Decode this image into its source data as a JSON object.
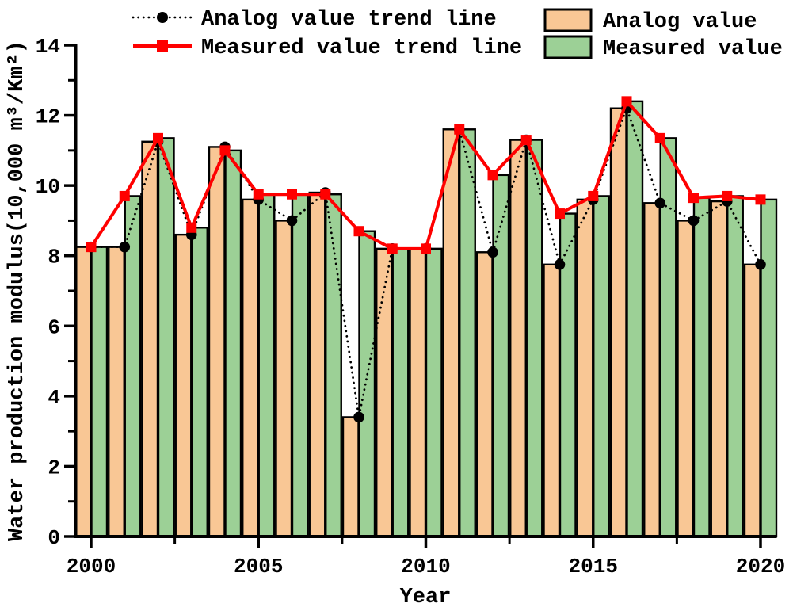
{
  "chart_data": {
    "type": "bar",
    "title": "",
    "xlabel": "Year",
    "ylabel": "Water production modulus(10,000 m³/Km²)",
    "ylim": [
      0,
      14
    ],
    "y_major_ticks": [
      0,
      2,
      4,
      6,
      8,
      10,
      12,
      14
    ],
    "y_minor_ticks": [
      1,
      3,
      5,
      7,
      9,
      11,
      13
    ],
    "x_major_ticks": [
      2000,
      2005,
      2010,
      2015,
      2020
    ],
    "x_minor_ticks": [
      2002.5,
      2007.5,
      2012.5,
      2017.5
    ],
    "grid": false,
    "legend_position": "top",
    "categories": [
      2000,
      2001,
      2002,
      2003,
      2004,
      2005,
      2006,
      2007,
      2008,
      2009,
      2010,
      2011,
      2012,
      2013,
      2014,
      2015,
      2016,
      2017,
      2018,
      2019,
      2020
    ],
    "series": [
      {
        "name": "Analog value",
        "type": "bar",
        "color": "#F9C795",
        "edge_color": "#000000",
        "values": [
          8.25,
          8.25,
          11.25,
          8.6,
          11.1,
          9.6,
          9.0,
          9.8,
          3.4,
          8.2,
          8.2,
          11.6,
          8.1,
          11.3,
          7.75,
          9.6,
          12.2,
          9.5,
          9.0,
          9.55,
          7.75
        ]
      },
      {
        "name": "Measured value",
        "type": "bar",
        "color": "#9CD096",
        "edge_color": "#000000",
        "values": [
          8.25,
          9.7,
          11.35,
          8.8,
          11.0,
          9.75,
          9.75,
          9.75,
          8.7,
          8.2,
          8.2,
          11.6,
          10.3,
          11.3,
          9.2,
          9.7,
          12.4,
          11.35,
          9.65,
          9.7,
          9.6
        ]
      },
      {
        "name": "Analog value trend line",
        "type": "line",
        "linestyle": "dotted",
        "marker": "circle",
        "color": "#000000",
        "values": [
          8.25,
          8.25,
          11.25,
          8.6,
          11.1,
          9.6,
          9.0,
          9.8,
          3.4,
          8.2,
          8.2,
          11.6,
          8.1,
          11.3,
          7.75,
          9.6,
          12.2,
          9.5,
          9.0,
          9.55,
          7.75
        ]
      },
      {
        "name": "Measured value trend line",
        "type": "line",
        "linestyle": "solid",
        "marker": "square",
        "color": "#FF0000",
        "values": [
          8.25,
          9.7,
          11.35,
          8.8,
          11.0,
          9.75,
          9.75,
          9.75,
          8.7,
          8.2,
          8.2,
          11.6,
          10.3,
          11.3,
          9.2,
          9.7,
          12.4,
          11.35,
          9.65,
          9.7,
          9.6
        ]
      }
    ]
  }
}
